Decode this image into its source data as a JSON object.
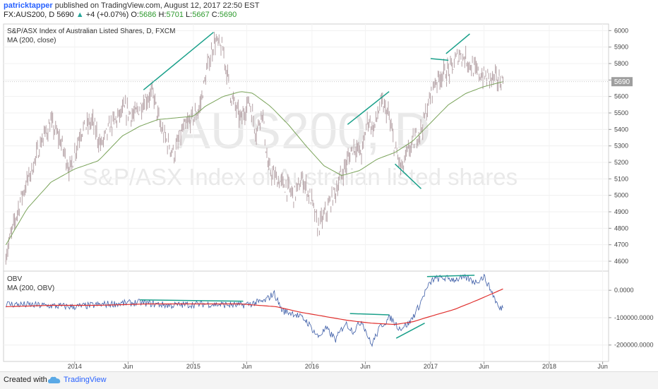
{
  "header": {
    "user": "patricktapper",
    "published": "published on TradingView.com, August 12, 2017 22:50 EST",
    "symbol": "FX:AUS200, D",
    "last": "5690",
    "change": "+4 (+0.07%)",
    "o_label": "O:",
    "o": "5686",
    "h_label": "H:",
    "h": "5701",
    "l_label": "L:",
    "l": "5667",
    "c_label": "C:",
    "c": "5690"
  },
  "footer": {
    "created_with": "Created with",
    "brand": "TradingView"
  },
  "colors": {
    "price": "#b5a2a6",
    "ma": "#7aa35a",
    "obv": "#3f5fa8",
    "obv_ma": "#e0302e",
    "trend": "#1aa08a",
    "price_label_bg": "#9e9e9e",
    "watermark": "#e9e9e9"
  },
  "chart_data": [
    {
      "type": "line",
      "title": "S&P/ASX Index of Australian Listed Shares, D, FXCM",
      "indicator": "MA (200, close)",
      "watermark_symbol": "AUS200, D",
      "watermark_desc": "S&P/ASX Index of Australian listed shares",
      "yticks": [
        4600,
        4700,
        4800,
        4900,
        5000,
        5100,
        5200,
        5300,
        5400,
        5500,
        5600,
        5700,
        5800,
        5900,
        6000
      ],
      "ylim": [
        4540,
        6040
      ],
      "last_price_label": "5690",
      "price_anchors": [
        [
          2013.42,
          4640
        ],
        [
          2013.55,
          4990
        ],
        [
          2013.65,
          5180
        ],
        [
          2013.72,
          5330
        ],
        [
          2013.8,
          5440
        ],
        [
          2013.88,
          5330
        ],
        [
          2013.96,
          5150
        ],
        [
          2014.05,
          5390
        ],
        [
          2014.15,
          5450
        ],
        [
          2014.22,
          5300
        ],
        [
          2014.3,
          5420
        ],
        [
          2014.42,
          5520
        ],
        [
          2014.5,
          5480
        ],
        [
          2014.58,
          5570
        ],
        [
          2014.66,
          5620
        ],
        [
          2014.72,
          5420
        ],
        [
          2014.78,
          5320
        ],
        [
          2014.84,
          5250
        ],
        [
          2014.9,
          5380
        ],
        [
          2014.97,
          5450
        ],
        [
          2015.05,
          5520
        ],
        [
          2015.12,
          5780
        ],
        [
          2015.18,
          5940
        ],
        [
          2015.25,
          5880
        ],
        [
          2015.32,
          5600
        ],
        [
          2015.4,
          5460
        ],
        [
          2015.47,
          5580
        ],
        [
          2015.53,
          5380
        ],
        [
          2015.58,
          5520
        ],
        [
          2015.63,
          5160
        ],
        [
          2015.7,
          5100
        ],
        [
          2015.78,
          5050
        ],
        [
          2015.85,
          5000
        ],
        [
          2015.92,
          5100
        ],
        [
          2016.0,
          4960
        ],
        [
          2016.05,
          4800
        ],
        [
          2016.12,
          4900
        ],
        [
          2016.2,
          5030
        ],
        [
          2016.28,
          5180
        ],
        [
          2016.35,
          5300
        ],
        [
          2016.42,
          5250
        ],
        [
          2016.47,
          5470
        ],
        [
          2016.52,
          5400
        ],
        [
          2016.58,
          5560
        ],
        [
          2016.64,
          5500
        ],
        [
          2016.7,
          5280
        ],
        [
          2016.76,
          5150
        ],
        [
          2016.8,
          5250
        ],
        [
          2016.86,
          5330
        ],
        [
          2016.92,
          5400
        ],
        [
          2016.97,
          5520
        ],
        [
          2017.03,
          5680
        ],
        [
          2017.1,
          5740
        ],
        [
          2017.17,
          5760
        ],
        [
          2017.24,
          5860
        ],
        [
          2017.31,
          5820
        ],
        [
          2017.38,
          5750
        ],
        [
          2017.45,
          5720
        ],
        [
          2017.52,
          5710
        ],
        [
          2017.58,
          5700
        ],
        [
          2017.61,
          5690
        ]
      ],
      "ma_anchors": [
        [
          2013.42,
          4700
        ],
        [
          2013.6,
          4920
        ],
        [
          2013.8,
          5080
        ],
        [
          2014.0,
          5160
        ],
        [
          2014.2,
          5210
        ],
        [
          2014.4,
          5360
        ],
        [
          2014.55,
          5420
        ],
        [
          2014.7,
          5460
        ],
        [
          2014.85,
          5470
        ],
        [
          2015.0,
          5480
        ],
        [
          2015.1,
          5540
        ],
        [
          2015.25,
          5600
        ],
        [
          2015.4,
          5630
        ],
        [
          2015.5,
          5620
        ],
        [
          2015.65,
          5540
        ],
        [
          2015.8,
          5430
        ],
        [
          2015.95,
          5300
        ],
        [
          2016.1,
          5180
        ],
        [
          2016.25,
          5120
        ],
        [
          2016.4,
          5150
        ],
        [
          2016.55,
          5220
        ],
        [
          2016.7,
          5260
        ],
        [
          2016.85,
          5330
        ],
        [
          2017.0,
          5440
        ],
        [
          2017.15,
          5550
        ],
        [
          2017.3,
          5620
        ],
        [
          2017.45,
          5660
        ],
        [
          2017.61,
          5690
        ]
      ],
      "trendlines": [
        [
          [
            2014.58,
            5640
          ],
          [
            2015.17,
            5990
          ]
        ],
        [
          [
            2016.3,
            5430
          ],
          [
            2016.65,
            5630
          ]
        ],
        [
          [
            2016.7,
            5190
          ],
          [
            2016.92,
            5040
          ]
        ],
        [
          [
            2017.0,
            5830
          ],
          [
            2017.15,
            5820
          ]
        ],
        [
          [
            2017.13,
            5860
          ],
          [
            2017.33,
            5980
          ]
        ]
      ]
    },
    {
      "type": "line",
      "title": "OBV",
      "indicator": "MA (200, OBV)",
      "yticks": [
        0,
        -100000,
        -200000
      ],
      "ytick_labels": [
        "0.0000",
        "-100000.0000",
        "-200000.0000"
      ],
      "ylim": [
        -260000,
        70000
      ],
      "obv_anchors": [
        [
          2013.42,
          -50000
        ],
        [
          2013.7,
          -55000
        ],
        [
          2014.0,
          -60000
        ],
        [
          2014.3,
          -50000
        ],
        [
          2014.55,
          -45000
        ],
        [
          2014.8,
          -55000
        ],
        [
          2015.1,
          -50000
        ],
        [
          2015.4,
          -55000
        ],
        [
          2015.6,
          -40000
        ],
        [
          2015.68,
          -10000
        ],
        [
          2015.75,
          -75000
        ],
        [
          2015.85,
          -85000
        ],
        [
          2015.95,
          -110000
        ],
        [
          2016.05,
          -170000
        ],
        [
          2016.12,
          -140000
        ],
        [
          2016.2,
          -180000
        ],
        [
          2016.28,
          -120000
        ],
        [
          2016.35,
          -150000
        ],
        [
          2016.42,
          -110000
        ],
        [
          2016.5,
          -200000
        ],
        [
          2016.58,
          -130000
        ],
        [
          2016.66,
          -100000
        ],
        [
          2016.74,
          -140000
        ],
        [
          2016.82,
          -120000
        ],
        [
          2016.9,
          -60000
        ],
        [
          2016.96,
          0
        ],
        [
          2017.02,
          40000
        ],
        [
          2017.1,
          45000
        ],
        [
          2017.2,
          40000
        ],
        [
          2017.3,
          45000
        ],
        [
          2017.38,
          30000
        ],
        [
          2017.45,
          50000
        ],
        [
          2017.52,
          -10000
        ],
        [
          2017.58,
          -70000
        ],
        [
          2017.61,
          -60000
        ]
      ],
      "obv_ma_anchors": [
        [
          2013.42,
          -60000
        ],
        [
          2013.8,
          -55000
        ],
        [
          2014.2,
          -55000
        ],
        [
          2014.6,
          -50000
        ],
        [
          2015.0,
          -50000
        ],
        [
          2015.4,
          -50000
        ],
        [
          2015.7,
          -60000
        ],
        [
          2015.9,
          -80000
        ],
        [
          2016.1,
          -95000
        ],
        [
          2016.3,
          -110000
        ],
        [
          2016.5,
          -120000
        ],
        [
          2016.7,
          -125000
        ],
        [
          2016.85,
          -115000
        ],
        [
          2017.0,
          -95000
        ],
        [
          2017.2,
          -70000
        ],
        [
          2017.4,
          -35000
        ],
        [
          2017.61,
          5000
        ]
      ],
      "trendlines": [
        [
          [
            2014.55,
            -35000
          ],
          [
            2015.42,
            -40000
          ]
        ],
        [
          [
            2016.32,
            -85000
          ],
          [
            2016.65,
            -90000
          ]
        ],
        [
          [
            2016.71,
            -175000
          ],
          [
            2016.95,
            -120000
          ]
        ],
        [
          [
            2016.97,
            50000
          ],
          [
            2017.37,
            55000
          ]
        ]
      ]
    }
  ],
  "x_axis": {
    "ticks": [
      {
        "v": 2014.0,
        "label": "2014"
      },
      {
        "v": 2014.45,
        "label": "Jun"
      },
      {
        "v": 2015.0,
        "label": "2015"
      },
      {
        "v": 2015.45,
        "label": "Jun"
      },
      {
        "v": 2016.0,
        "label": "2016"
      },
      {
        "v": 2016.45,
        "label": "Jun"
      },
      {
        "v": 2017.0,
        "label": "2017"
      },
      {
        "v": 2017.45,
        "label": "Jun"
      },
      {
        "v": 2018.0,
        "label": "2018"
      },
      {
        "v": 2018.45,
        "label": "Jun"
      }
    ],
    "xlim": [
      2013.4,
      2018.5
    ]
  }
}
